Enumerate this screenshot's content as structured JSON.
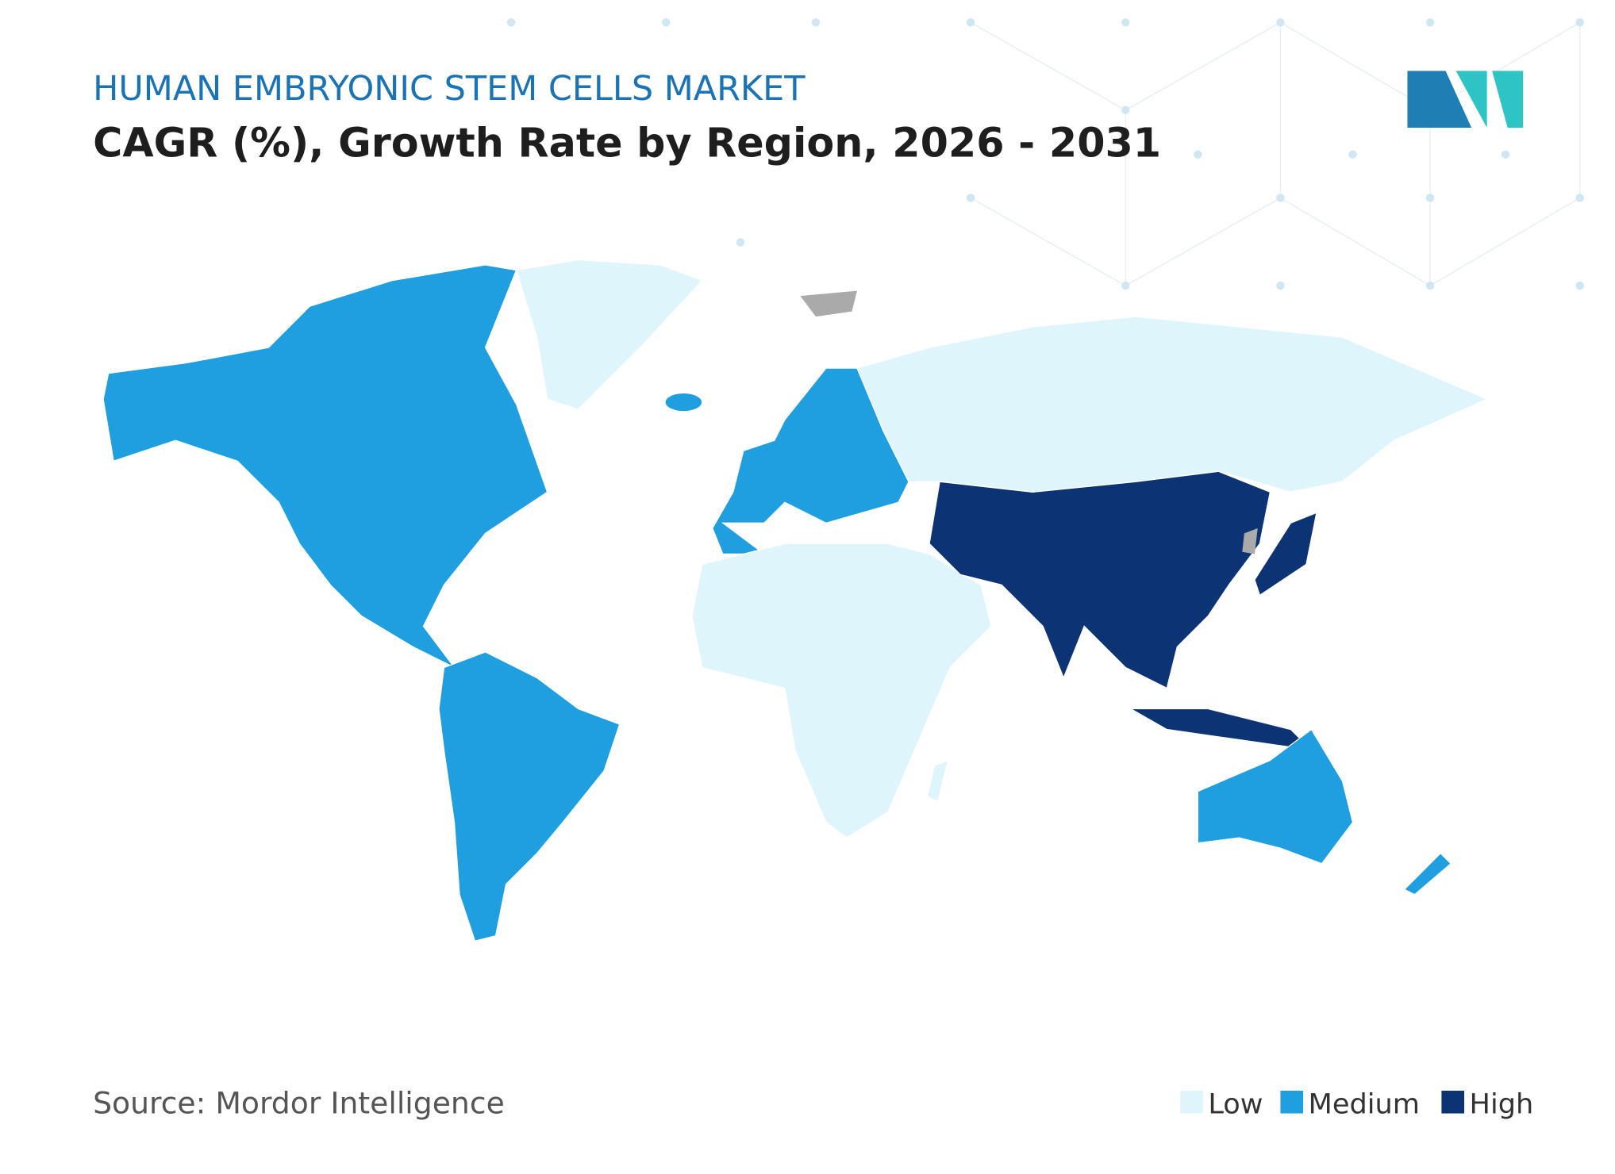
{
  "header": {
    "title": "HUMAN EMBRYONIC STEM CELLS MARKET",
    "subtitle": "CAGR (%), Growth Rate by Region, 2026 - 2031"
  },
  "legend": [
    {
      "label": "Low",
      "color": "#dff5fc"
    },
    {
      "label": "Medium",
      "color": "#1f9ee0"
    },
    {
      "label": "High",
      "color": "#0c3474"
    }
  ],
  "source": "Source: Mordor Intelligence"
}
